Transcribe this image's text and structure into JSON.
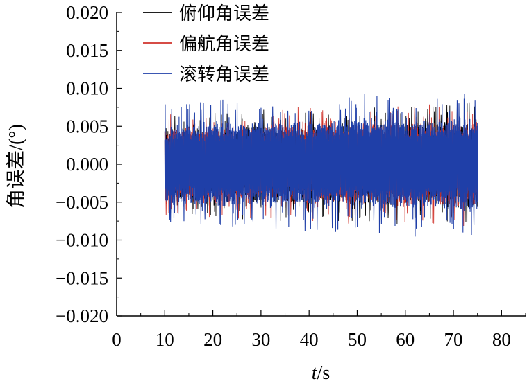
{
  "chart_data": {
    "type": "line",
    "xlabel": "t/s",
    "ylabel": "角误差/(°)",
    "xlim": [
      0,
      85
    ],
    "ylim": [
      -0.02,
      0.02
    ],
    "x_ticks": [
      "0",
      "10",
      "20",
      "30",
      "40",
      "50",
      "60",
      "70",
      "80"
    ],
    "y_ticks": [
      "0.020",
      "0.015",
      "0.010",
      "0.005",
      "0.000",
      "−0.005",
      "−0.010",
      "−0.015",
      "−0.020"
    ],
    "legend_position": "top-left",
    "grid": false,
    "series": [
      {
        "name": "俯仰角误差",
        "color": "#000000",
        "x_start": 10,
        "x_end": 75,
        "typical_amplitude": 0.0055,
        "peak_amplitude": 0.008
      },
      {
        "name": "偏航角误差",
        "color": "#d0332b",
        "x_start": 10,
        "x_end": 75,
        "typical_amplitude": 0.0055,
        "peak_amplitude": 0.008
      },
      {
        "name": "滚转角误差",
        "color": "#1f3fa8",
        "x_start": 10,
        "x_end": 75,
        "typical_amplitude": 0.006,
        "peak_amplitude": 0.0095
      }
    ]
  }
}
